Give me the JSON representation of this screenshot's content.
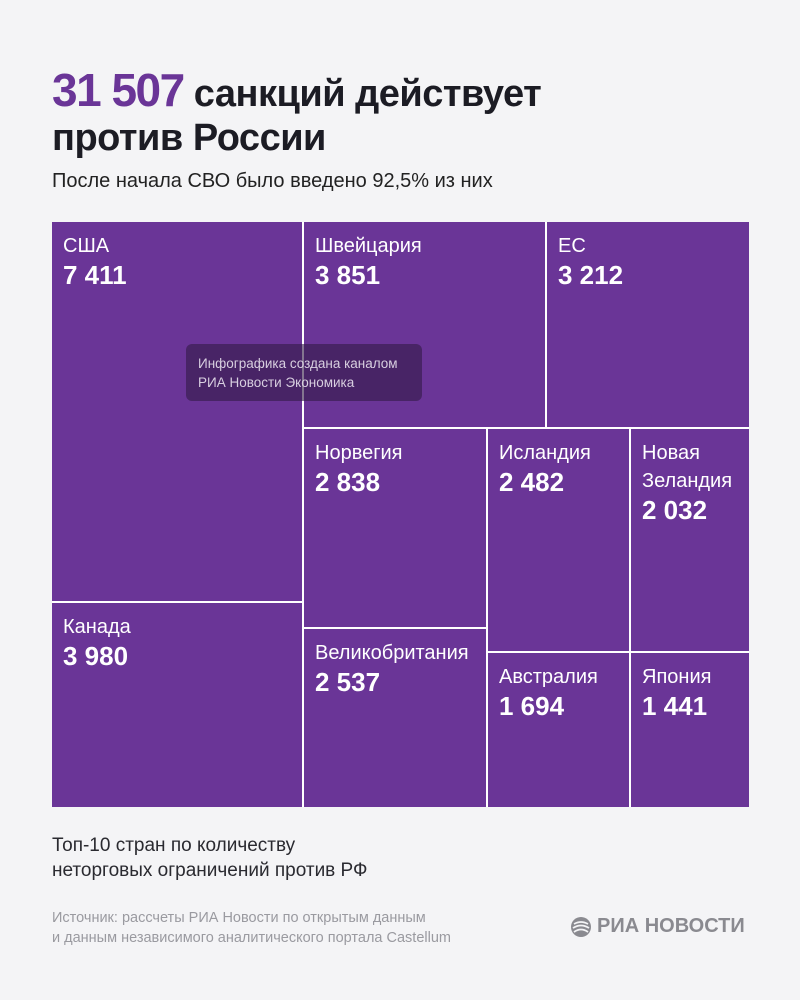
{
  "header": {
    "title_number": "31 507",
    "title_rest": "санкций действует",
    "title_line2": "против России",
    "subtitle": "После начала СВО было введено 92,5% из них"
  },
  "chart_data": {
    "type": "treemap",
    "color": "#6a3597",
    "categories": [
      "США",
      "Канада",
      "Швейцария",
      "ЕС",
      "Норвегия",
      "Великобритания",
      "Исландия",
      "Новая Зеландия",
      "Австралия",
      "Япония"
    ],
    "values": [
      7411,
      3980,
      3851,
      3212,
      2838,
      2537,
      2482,
      2032,
      1694,
      1441
    ],
    "value_labels": [
      "7 411",
      "3 980",
      "3 851",
      "3 212",
      "2 838",
      "2 537",
      "2 482",
      "2 032",
      "1 694",
      "1 441"
    ]
  },
  "watermark": {
    "line1": "Инфографика создана каналом",
    "line2": "РИА Новости Экономика"
  },
  "footer": {
    "note_line1": "Топ-10 стран по количеству",
    "note_line2": "неторговых ограничений против РФ",
    "source_line1": "Источник: рассчеты РИА Новости по открытым данным",
    "source_line2": "и данным независимого аналитического портала Castellum",
    "logo": "РИА НОВОСТИ"
  }
}
